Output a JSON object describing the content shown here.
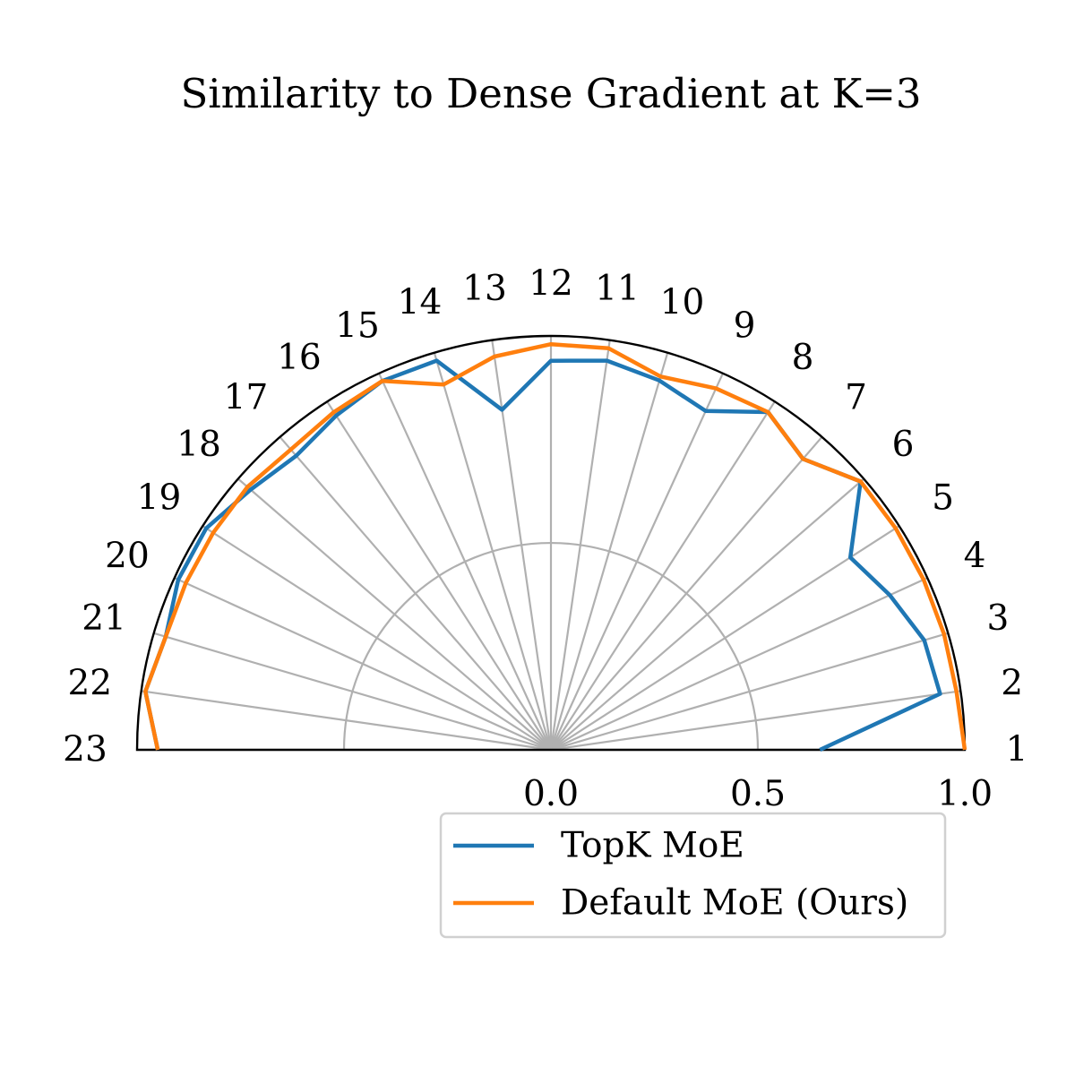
{
  "chart_data": {
    "type": "line",
    "projection": "polar-semicircle",
    "title": "Similarity to Dense Gradient at K=3",
    "angular_labels": [
      "1",
      "2",
      "3",
      "4",
      "5",
      "6",
      "7",
      "8",
      "9",
      "10",
      "11",
      "12",
      "13",
      "14",
      "15",
      "16",
      "17",
      "18",
      "19",
      "20",
      "21",
      "22",
      "23"
    ],
    "radial_ticks": [
      0.0,
      0.5,
      1.0
    ],
    "radial_tick_labels": [
      "0.0",
      "0.5",
      "1.0"
    ],
    "rlim": [
      0,
      1.0
    ],
    "grid": true,
    "legend_position": "bottom-right",
    "series": [
      {
        "name": "TopK MoE",
        "color": "#1f77b4",
        "values": [
          0.65,
          0.95,
          0.94,
          0.9,
          0.86,
          0.99,
          0.93,
          0.97,
          0.9,
          0.93,
          0.95,
          0.94,
          0.83,
          0.98,
          0.98,
          0.96,
          0.94,
          0.96,
          0.99,
          0.99,
          0.97,
          0.99,
          0.95
        ]
      },
      {
        "name": "Default MoE (Ours)",
        "color": "#ff7f0e",
        "values": [
          1.0,
          0.99,
          0.99,
          0.99,
          0.99,
          0.99,
          0.93,
          0.97,
          0.96,
          0.94,
          0.98,
          0.98,
          0.96,
          0.92,
          0.98,
          0.97,
          0.96,
          0.97,
          0.97,
          0.97,
          0.97,
          0.99,
          0.95
        ]
      }
    ]
  }
}
